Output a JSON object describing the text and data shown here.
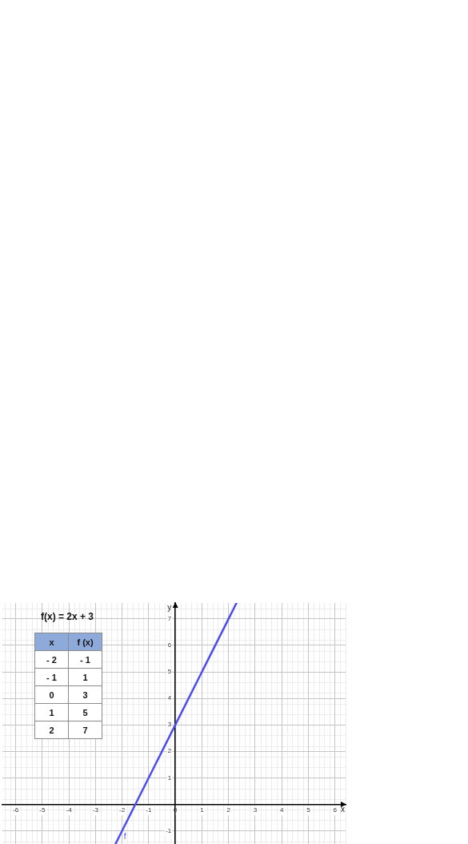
{
  "chart_data": {
    "type": "line",
    "title": "f(x) = 2x + 3",
    "xlabel": "x",
    "ylabel": "y",
    "series": [
      {
        "name": "f",
        "color": "#4b4bf0",
        "x": [
          -2.25,
          -2,
          -1,
          0,
          1,
          2,
          2.3
        ],
        "values": [
          -1.5,
          -1,
          1,
          3,
          5,
          7,
          7.6
        ]
      }
    ],
    "xlim": [
      -6.5,
      6.4
    ],
    "ylim": [
      -1.5,
      7.6
    ],
    "xticks": [
      -6,
      -5,
      -4,
      -3,
      -2,
      -1,
      0,
      1,
      2,
      3,
      4,
      5,
      6
    ],
    "yticks": [
      -1,
      1,
      2,
      3,
      4,
      5,
      6,
      7
    ],
    "grid": true,
    "marker": "none",
    "line_style": "solid",
    "annotations": [
      "x",
      "f (x)",
      "- 2",
      "- 1",
      "- 1",
      "1",
      "0",
      "3",
      "1",
      "5",
      "2",
      "7"
    ]
  }
}
